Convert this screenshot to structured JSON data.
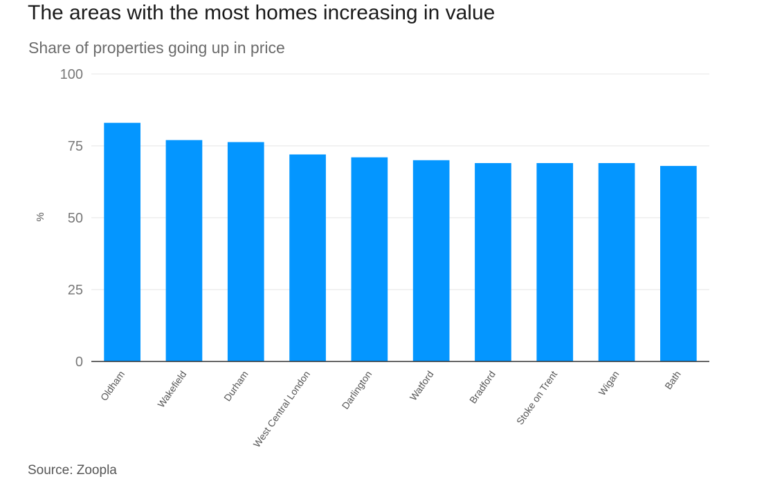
{
  "chart_data": {
    "type": "bar",
    "title": "The areas with the most homes increasing in value",
    "subtitle": "Share of properties going up in price",
    "xlabel": "",
    "ylabel": "%",
    "ylim": [
      0,
      100
    ],
    "yticks": [
      "0",
      "25",
      "50",
      "75",
      "100"
    ],
    "grid": true,
    "categories": [
      "Oldham",
      "Wakefield",
      "Durham",
      "West Central London",
      "Darlington",
      "Watford",
      "Bradford",
      "Stoke on Trent",
      "Wigan",
      "Bath"
    ],
    "values": [
      83,
      77,
      76.3,
      72,
      71,
      70,
      69,
      69,
      69,
      68
    ],
    "bar_color": "#0496ff",
    "source": "Source: Zoopla"
  }
}
